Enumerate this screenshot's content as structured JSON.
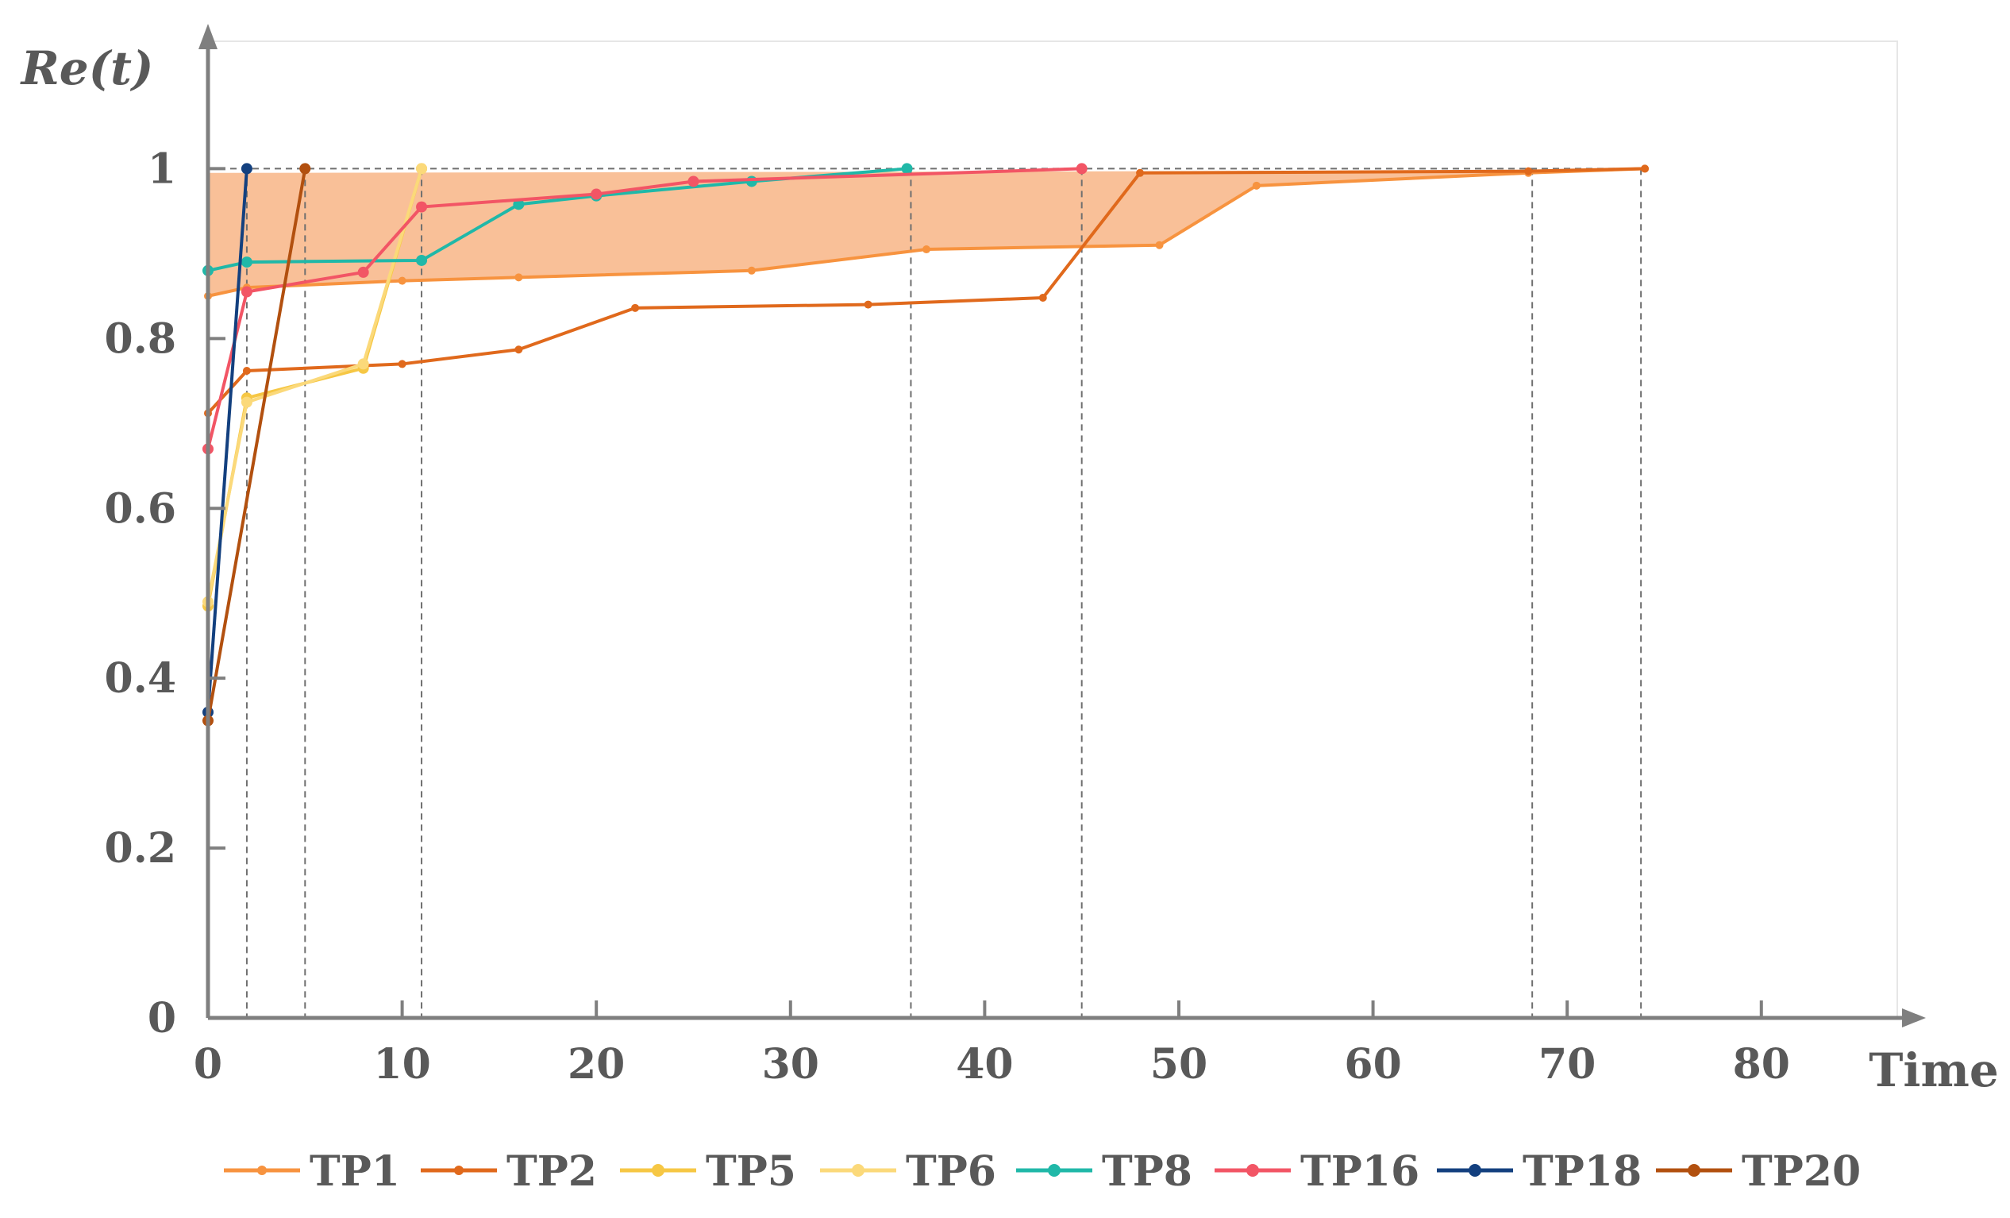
{
  "chart_data": {
    "type": "line",
    "ylabel": "Re(t)",
    "xlabel": "Time",
    "xlim": [
      0,
      87
    ],
    "ylim": [
      0,
      1.15
    ],
    "xticks": [
      0,
      10,
      20,
      30,
      40,
      50,
      60,
      70,
      80
    ],
    "xtick_labels": [
      "0",
      "10",
      "20",
      "30",
      "40",
      "50",
      "60",
      "70",
      "80"
    ],
    "yticks": [
      0,
      0.2,
      0.4,
      0.6,
      0.8,
      1
    ],
    "ytick_labels": [
      "0",
      "0.2",
      "0.4",
      "0.6",
      "0.8",
      "1"
    ],
    "grid": false,
    "legend_position": "bottom",
    "reference_line_y": 1,
    "vertical_markers_x": [
      2,
      5,
      11,
      36.2,
      45,
      68.2,
      73.8
    ],
    "band_color": "#f8b98d",
    "band_upper": [
      [
        0,
        0.995
      ],
      [
        74,
        0.998
      ]
    ],
    "band_lower": [
      [
        0,
        0.85
      ],
      [
        2,
        0.86
      ],
      [
        10,
        0.868
      ],
      [
        16,
        0.872
      ],
      [
        28,
        0.88
      ],
      [
        37,
        0.905
      ],
      [
        49,
        0.91
      ],
      [
        54,
        0.98
      ],
      [
        68,
        0.995
      ],
      [
        74,
        1.0
      ]
    ],
    "series": [
      {
        "name": "TP1",
        "color": "#f7933f",
        "marker": "small",
        "x": [
          0,
          2,
          10,
          16,
          28,
          37,
          49,
          54,
          68,
          74
        ],
        "y": [
          0.85,
          0.86,
          0.868,
          0.872,
          0.88,
          0.905,
          0.91,
          0.98,
          0.995,
          1.0
        ]
      },
      {
        "name": "TP2",
        "color": "#e0691c",
        "marker": "small",
        "x": [
          0,
          2,
          10,
          16,
          22,
          34,
          43,
          48,
          68,
          74
        ],
        "y": [
          0.712,
          0.762,
          0.77,
          0.787,
          0.836,
          0.84,
          0.848,
          0.995,
          0.997,
          1.0
        ]
      },
      {
        "name": "TP5",
        "color": "#f6c744",
        "marker": "large",
        "x": [
          0,
          2,
          8,
          11
        ],
        "y": [
          0.485,
          0.73,
          0.765,
          1.0
        ]
      },
      {
        "name": "TP6",
        "color": "#fbd97a",
        "marker": "large",
        "x": [
          0,
          2,
          8,
          11
        ],
        "y": [
          0.49,
          0.725,
          0.77,
          1.0
        ]
      },
      {
        "name": "TP8",
        "color": "#20b8a8",
        "marker": "large",
        "x": [
          0,
          2,
          11,
          16,
          20,
          28,
          36
        ],
        "y": [
          0.88,
          0.89,
          0.892,
          0.958,
          0.968,
          0.985,
          1.0
        ]
      },
      {
        "name": "TP16",
        "color": "#f25565",
        "marker": "large",
        "x": [
          0,
          2,
          8,
          11,
          20,
          25,
          45
        ],
        "y": [
          0.67,
          0.855,
          0.878,
          0.955,
          0.97,
          0.985,
          1.0
        ]
      },
      {
        "name": "TP18",
        "color": "#13407f",
        "marker": "large",
        "x": [
          0,
          2
        ],
        "y": [
          0.36,
          1.0
        ]
      },
      {
        "name": "TP20",
        "color": "#b2500f",
        "marker": "large",
        "x": [
          0,
          5
        ],
        "y": [
          0.35,
          1.0
        ]
      }
    ]
  }
}
